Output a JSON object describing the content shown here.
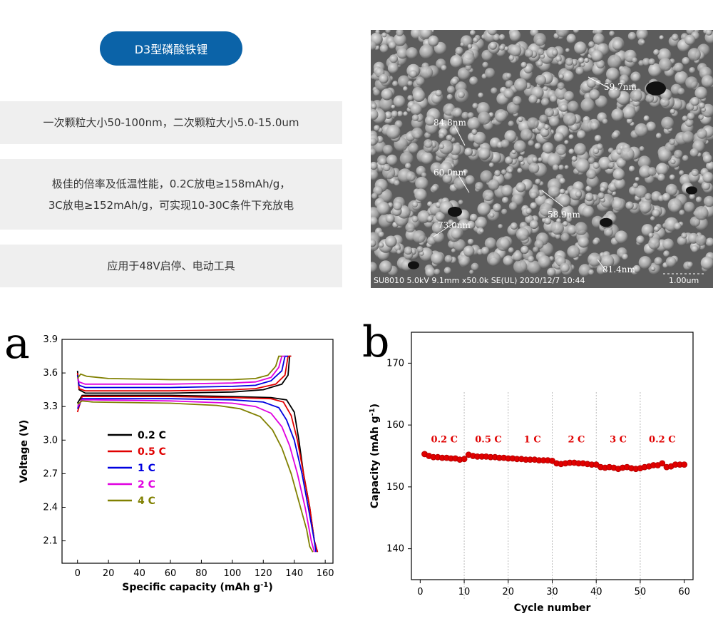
{
  "product": {
    "title": "D3型磷酸铁锂",
    "features": [
      "一次颗粒大小50-100nm，二次颗粒大小5.0-15.0um",
      "极佳的倍率及低温性能，0.2C放电≥158mAh/g，",
      "3C放电≥152mAh/g，可实现10-30C条件下充放电",
      "应用于48V启停、电动工具"
    ]
  },
  "sem_image": {
    "measurements": [
      "59.7nm",
      "84.8nm",
      "60.0nm",
      "58.9nm",
      "73.0nm",
      "81.4nm"
    ],
    "footer": "SU8010 5.0kV 9.1mm x50.0k SE(UL) 2020/12/7 10:44",
    "scale_bar": "1.00um"
  },
  "chart_data": [
    {
      "panel": "a",
      "type": "line",
      "xlabel": "Specific capacity (mAh g-1)",
      "ylabel": "Voltage (V)",
      "xlim": [
        -10,
        165
      ],
      "ylim": [
        1.9,
        3.9
      ],
      "xticks": [
        0,
        20,
        40,
        60,
        80,
        100,
        120,
        140,
        160
      ],
      "yticks": [
        2.1,
        2.4,
        2.7,
        3.0,
        3.3,
        3.6,
        3.9
      ],
      "legend_position": "center-left",
      "series": [
        {
          "name": "0.2 C",
          "color": "#000000",
          "charge": [
            [
              0,
              3.62
            ],
            [
              1,
              3.45
            ],
            [
              5,
              3.42
            ],
            [
              20,
              3.42
            ],
            [
              60,
              3.42
            ],
            [
              100,
              3.43
            ],
            [
              120,
              3.45
            ],
            [
              132,
              3.5
            ],
            [
              136,
              3.58
            ],
            [
              137,
              3.75
            ],
            [
              138,
              3.75
            ]
          ],
          "discharge": [
            [
              0,
              3.33
            ],
            [
              3,
              3.4
            ],
            [
              10,
              3.4
            ],
            [
              60,
              3.4
            ],
            [
              100,
              3.39
            ],
            [
              125,
              3.38
            ],
            [
              135,
              3.36
            ],
            [
              140,
              3.25
            ],
            [
              143,
              3.0
            ],
            [
              146,
              2.7
            ],
            [
              150,
              2.4
            ],
            [
              153,
              2.1
            ],
            [
              155,
              2.0
            ]
          ]
        },
        {
          "name": "0.5 C",
          "color": "#e00000",
          "charge": [
            [
              0,
              3.6
            ],
            [
              1,
              3.46
            ],
            [
              5,
              3.44
            ],
            [
              20,
              3.44
            ],
            [
              60,
              3.44
            ],
            [
              100,
              3.45
            ],
            [
              115,
              3.46
            ],
            [
              128,
              3.5
            ],
            [
              134,
              3.58
            ],
            [
              136,
              3.75
            ],
            [
              138,
              3.75
            ]
          ],
          "discharge": [
            [
              0,
              3.25
            ],
            [
              3,
              3.39
            ],
            [
              10,
              3.39
            ],
            [
              60,
              3.39
            ],
            [
              100,
              3.38
            ],
            [
              125,
              3.37
            ],
            [
              133,
              3.34
            ],
            [
              138,
              3.22
            ],
            [
              142,
              3.0
            ],
            [
              146,
              2.7
            ],
            [
              150,
              2.4
            ],
            [
              153,
              2.1
            ],
            [
              155,
              2.0
            ]
          ]
        },
        {
          "name": "1 C",
          "color": "#0000e0",
          "charge": [
            [
              0,
              3.58
            ],
            [
              1,
              3.49
            ],
            [
              5,
              3.47
            ],
            [
              20,
              3.47
            ],
            [
              60,
              3.47
            ],
            [
              100,
              3.48
            ],
            [
              115,
              3.49
            ],
            [
              125,
              3.53
            ],
            [
              132,
              3.62
            ],
            [
              134,
              3.75
            ],
            [
              136,
              3.75
            ]
          ],
          "discharge": [
            [
              0,
              3.28
            ],
            [
              3,
              3.37
            ],
            [
              10,
              3.37
            ],
            [
              60,
              3.37
            ],
            [
              100,
              3.36
            ],
            [
              120,
              3.34
            ],
            [
              130,
              3.29
            ],
            [
              135,
              3.18
            ],
            [
              140,
              3.0
            ],
            [
              145,
              2.7
            ],
            [
              149,
              2.4
            ],
            [
              153,
              2.1
            ],
            [
              154,
              2.0
            ]
          ]
        },
        {
          "name": "2 C",
          "color": "#e000e0",
          "charge": [
            [
              0,
              3.56
            ],
            [
              1,
              3.52
            ],
            [
              5,
              3.5
            ],
            [
              20,
              3.5
            ],
            [
              60,
              3.5
            ],
            [
              100,
              3.51
            ],
            [
              115,
              3.52
            ],
            [
              125,
              3.56
            ],
            [
              130,
              3.65
            ],
            [
              132,
              3.75
            ],
            [
              134,
              3.75
            ]
          ],
          "discharge": [
            [
              0,
              3.3
            ],
            [
              3,
              3.36
            ],
            [
              10,
              3.36
            ],
            [
              60,
              3.35
            ],
            [
              100,
              3.33
            ],
            [
              115,
              3.3
            ],
            [
              125,
              3.24
            ],
            [
              132,
              3.12
            ],
            [
              137,
              2.95
            ],
            [
              142,
              2.7
            ],
            [
              147,
              2.4
            ],
            [
              151,
              2.1
            ],
            [
              153,
              2.0
            ]
          ]
        },
        {
          "name": "4 C",
          "color": "#808000",
          "charge": [
            [
              0,
              3.55
            ],
            [
              2,
              3.59
            ],
            [
              6,
              3.57
            ],
            [
              20,
              3.55
            ],
            [
              60,
              3.54
            ],
            [
              100,
              3.54
            ],
            [
              115,
              3.55
            ],
            [
              123,
              3.58
            ],
            [
              128,
              3.66
            ],
            [
              130,
              3.75
            ],
            [
              132,
              3.75
            ]
          ],
          "discharge": [
            [
              0,
              3.32
            ],
            [
              3,
              3.35
            ],
            [
              10,
              3.34
            ],
            [
              60,
              3.33
            ],
            [
              90,
              3.31
            ],
            [
              105,
              3.28
            ],
            [
              118,
              3.21
            ],
            [
              126,
              3.09
            ],
            [
              132,
              2.93
            ],
            [
              138,
              2.7
            ],
            [
              144,
              2.4
            ],
            [
              148,
              2.2
            ],
            [
              150,
              2.05
            ],
            [
              152,
              2.0
            ]
          ]
        }
      ]
    },
    {
      "panel": "b",
      "type": "scatter",
      "xlabel": "Cycle number",
      "ylabel": "Capacity (mAh g-1)",
      "xlim": [
        -2,
        62
      ],
      "ylim": [
        135,
        175
      ],
      "xticks": [
        0,
        10,
        20,
        30,
        40,
        50,
        60
      ],
      "yticks": [
        140,
        150,
        160,
        170
      ],
      "color": "#e00000",
      "segments": [
        {
          "label": "0.2 C",
          "label_x": 5.5
        },
        {
          "label": "0.5 C",
          "label_x": 15.5
        },
        {
          "label": "1 C",
          "label_x": 25.5
        },
        {
          "label": "2 C",
          "label_x": 35.5
        },
        {
          "label": "3 C",
          "label_x": 45
        },
        {
          "label": "0.2 C",
          "label_x": 55
        }
      ],
      "segment_boundaries": [
        10,
        20,
        30,
        40,
        50
      ],
      "x": [
        1,
        2,
        3,
        4,
        5,
        6,
        7,
        8,
        9,
        10,
        11,
        12,
        13,
        14,
        15,
        16,
        17,
        18,
        19,
        20,
        21,
        22,
        23,
        24,
        25,
        26,
        27,
        28,
        29,
        30,
        31,
        32,
        33,
        34,
        35,
        36,
        37,
        38,
        39,
        40,
        41,
        42,
        43,
        44,
        45,
        46,
        47,
        48,
        49,
        50,
        51,
        52,
        53,
        54,
        55,
        56,
        57,
        58,
        59,
        60
      ],
      "y": [
        155.3,
        155.0,
        154.8,
        154.8,
        154.7,
        154.7,
        154.6,
        154.6,
        154.4,
        154.5,
        155.2,
        155.0,
        154.9,
        154.9,
        154.9,
        154.8,
        154.8,
        154.7,
        154.7,
        154.6,
        154.6,
        154.5,
        154.5,
        154.4,
        154.4,
        154.4,
        154.3,
        154.3,
        154.3,
        154.2,
        153.8,
        153.7,
        153.8,
        153.9,
        153.9,
        153.8,
        153.8,
        153.7,
        153.6,
        153.6,
        153.2,
        153.1,
        153.2,
        153.1,
        152.9,
        153.1,
        153.2,
        153.0,
        152.9,
        153.0,
        153.2,
        153.3,
        153.5,
        153.5,
        153.8,
        153.2,
        153.3,
        153.6,
        153.6,
        153.6
      ]
    }
  ]
}
